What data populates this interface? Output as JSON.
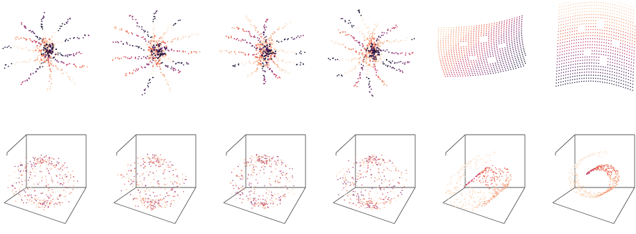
{
  "figure": {
    "rows": [
      {
        "kind": "embedding-2d",
        "panels": [
          {
            "shape": "burst"
          },
          {
            "shape": "burst"
          },
          {
            "shape": "burst"
          },
          {
            "shape": "burst"
          },
          {
            "shape": "grid-with-holes"
          },
          {
            "shape": "grid-with-holes"
          }
        ]
      },
      {
        "kind": "scatter-3d",
        "panels": [
          {
            "shape": "cloud"
          },
          {
            "shape": "cloud"
          },
          {
            "shape": "cloud"
          },
          {
            "shape": "cloud"
          },
          {
            "shape": "swiss-roll"
          },
          {
            "shape": "swiss-roll"
          }
        ]
      }
    ],
    "colormap": [
      "#1b1537",
      "#4a1d5a",
      "#8a2b6e",
      "#c23a63",
      "#e8654f",
      "#f4a07a",
      "#f8cfae",
      "#fae8d8"
    ],
    "axis_color": "#555555"
  }
}
